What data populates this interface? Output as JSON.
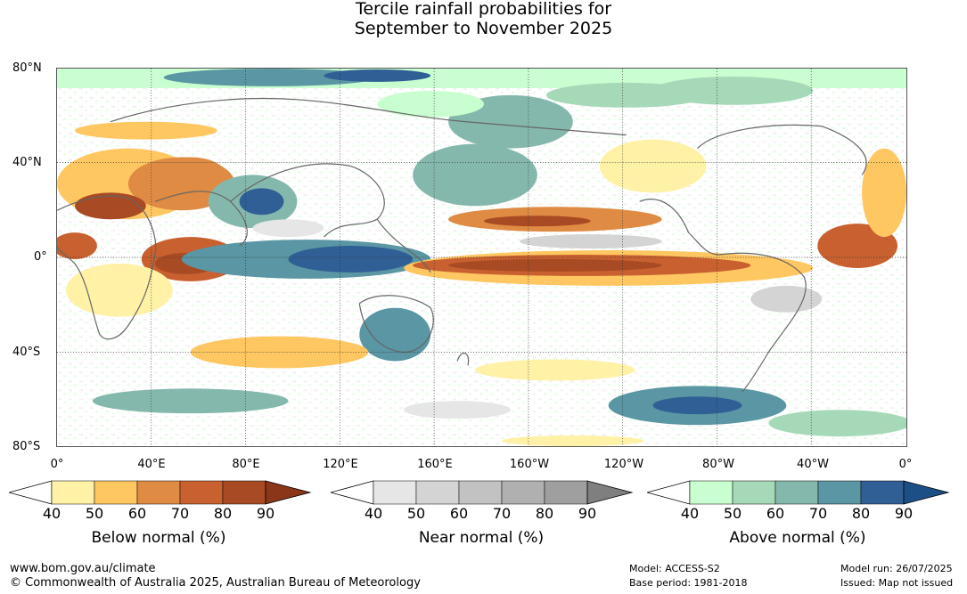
{
  "title": {
    "line1": "Tercile rainfall probabilities for",
    "line2": "September to November 2025"
  },
  "map": {
    "lat_labels": [
      "80°N",
      "40°N",
      "0°",
      "40°S",
      "80°S"
    ],
    "lon_labels": [
      "0°",
      "40°E",
      "80°E",
      "120°E",
      "160°E",
      "160°W",
      "120°W",
      "80°W",
      "40°W",
      "0°"
    ]
  },
  "colorbars": [
    {
      "title": "Below normal (%)",
      "ticks": [
        "40",
        "50",
        "60",
        "70",
        "80",
        "90"
      ],
      "colors": [
        "#fff1a6",
        "#fec761",
        "#df8b43",
        "#c8602f",
        "#a84a23",
        "#8b3519"
      ]
    },
    {
      "title": "Near normal (%)",
      "ticks": [
        "40",
        "50",
        "60",
        "70",
        "80",
        "90"
      ],
      "colors": [
        "#e6e6e6",
        "#d4d4d4",
        "#c2c2c2",
        "#b0b0b0",
        "#9f9f9f",
        "#7f7f7f"
      ]
    },
    {
      "title": "Above normal (%)",
      "ticks": [
        "40",
        "50",
        "60",
        "70",
        "80",
        "90"
      ],
      "colors": [
        "#c9ffd0",
        "#a6d9b8",
        "#85b8ad",
        "#5a96a3",
        "#2f5f95",
        "#1b4f86"
      ]
    }
  ],
  "footer": {
    "website": "www.bom.gov.au/climate",
    "copyright": "© Commonwealth of Australia 2025, Australian Bureau of Meteorology",
    "model": "Model: ACCESS-S2",
    "base_period": "Base period: 1981-2018",
    "model_run": "Model run: 26/07/2025",
    "issued": "Issued: Map not issued"
  }
}
